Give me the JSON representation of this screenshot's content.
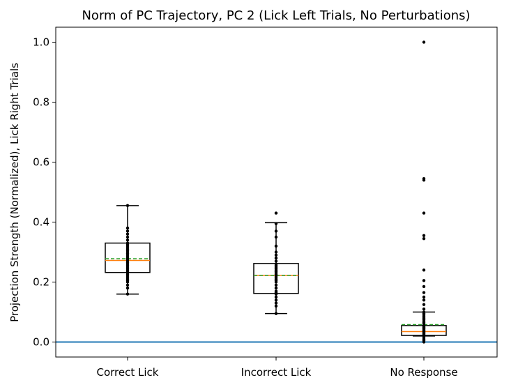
{
  "chart_data": {
    "type": "box",
    "title": "Norm of PC Trajectory, PC 2  (Lick Left Trials, No Perturbations)",
    "xlabel": "",
    "ylabel": "Projection Strength (Normalized), Lick Right Trials",
    "ylim": [
      -0.05,
      1.05
    ],
    "yticks": [
      0.0,
      0.2,
      0.4,
      0.6,
      0.8,
      1.0
    ],
    "ytick_labels": [
      "0.0",
      "0.2",
      "0.4",
      "0.6",
      "0.8",
      "1.0"
    ],
    "categories": [
      "Correct Lick",
      "Incorrect Lick",
      "No Response"
    ],
    "reference_line": {
      "y": 0.0,
      "color": "#1f77b4"
    },
    "colors": {
      "box": "#000000",
      "median": "#ff7f0e",
      "mean": "#2ca02c",
      "points": "#000000",
      "frame": "#000000"
    },
    "boxes": [
      {
        "category": "Correct Lick",
        "whisker_low": 0.16,
        "q1": 0.232,
        "median": 0.272,
        "mean": 0.278,
        "q3": 0.33,
        "whisker_high": 0.455,
        "points": [
          0.16,
          0.18,
          0.19,
          0.2,
          0.205,
          0.21,
          0.215,
          0.22,
          0.225,
          0.23,
          0.235,
          0.24,
          0.245,
          0.25,
          0.255,
          0.26,
          0.265,
          0.27,
          0.275,
          0.28,
          0.285,
          0.29,
          0.295,
          0.3,
          0.305,
          0.31,
          0.315,
          0.32,
          0.325,
          0.33,
          0.34,
          0.35,
          0.36,
          0.37,
          0.38,
          0.455
        ]
      },
      {
        "category": "Incorrect Lick",
        "whisker_low": 0.095,
        "q1": 0.162,
        "median": 0.222,
        "mean": 0.222,
        "q3": 0.262,
        "whisker_high": 0.398,
        "points": [
          0.095,
          0.12,
          0.13,
          0.14,
          0.15,
          0.16,
          0.165,
          0.17,
          0.18,
          0.19,
          0.2,
          0.205,
          0.21,
          0.215,
          0.22,
          0.225,
          0.23,
          0.235,
          0.24,
          0.245,
          0.25,
          0.255,
          0.26,
          0.27,
          0.28,
          0.29,
          0.3,
          0.32,
          0.35,
          0.37,
          0.395,
          0.43
        ]
      },
      {
        "category": "No Response",
        "whisker_low": 0.02,
        "q1": 0.022,
        "median": 0.035,
        "mean": 0.058,
        "q3": 0.055,
        "whisker_high": 0.1,
        "points": [
          0.0,
          0.005,
          0.01,
          0.015,
          0.02,
          0.022,
          0.025,
          0.028,
          0.03,
          0.033,
          0.035,
          0.038,
          0.04,
          0.043,
          0.045,
          0.048,
          0.05,
          0.053,
          0.055,
          0.06,
          0.065,
          0.07,
          0.075,
          0.08,
          0.085,
          0.09,
          0.095,
          0.1,
          0.11,
          0.125,
          0.14,
          0.15,
          0.165,
          0.185,
          0.205,
          0.24,
          0.345,
          0.355,
          0.43,
          0.54,
          0.545,
          1.0
        ]
      }
    ]
  }
}
